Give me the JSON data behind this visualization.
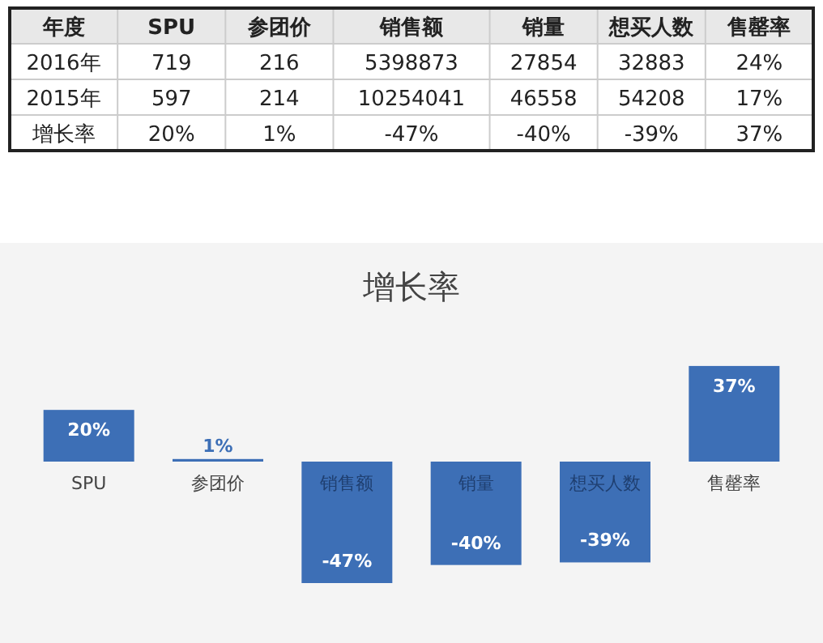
{
  "chart_data": [
    {
      "type": "other",
      "categories": [
        "年度",
        "SPU",
        "参团价",
        "销售额",
        "销量",
        "想买人数",
        "售罄率"
      ],
      "annotations": [
        "2016年",
        "719",
        "216",
        "5398873",
        "27854",
        "32883",
        "24%",
        "2015年",
        "597",
        "214",
        "10254041",
        "46558",
        "54208",
        "17%",
        "增长率",
        "20%",
        "1%",
        "-47%",
        "-40%",
        "-39%",
        "37%"
      ]
    },
    {
      "type": "bar",
      "title": "增长率",
      "categories": [
        "SPU",
        "参团价",
        "销售额",
        "销量",
        "想买人数",
        "售罄率"
      ],
      "values": [
        20,
        1,
        -47,
        -40,
        -39,
        37
      ],
      "color": "#3d6fb6",
      "value_labels": [
        "20%",
        "1%",
        "-47%",
        "-40%",
        "-39%",
        "37%"
      ]
    }
  ]
}
